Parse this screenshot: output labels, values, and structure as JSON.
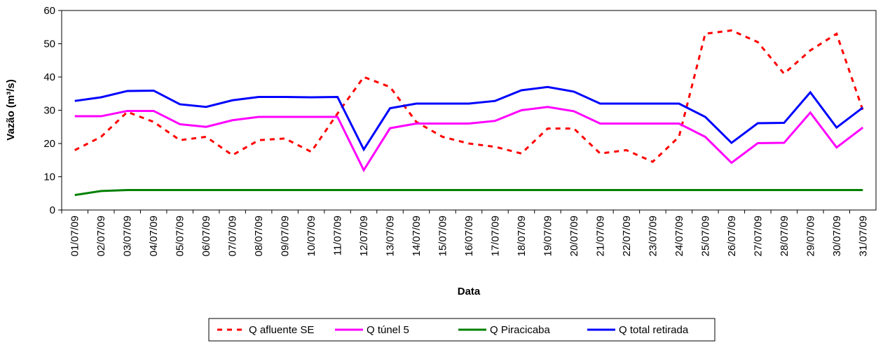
{
  "chart_data": {
    "type": "line",
    "x_label": "Data",
    "y_label": "Vazão (m³/s)",
    "categories": [
      "01/07/09",
      "02/07/09",
      "03/07/09",
      "04/07/09",
      "05/07/09",
      "06/07/09",
      "07/07/09",
      "08/07/09",
      "09/07/09",
      "10/07/09",
      "11/07/09",
      "12/07/09",
      "13/07/09",
      "14/07/09",
      "15/07/09",
      "16/07/09",
      "17/07/09",
      "18/07/09",
      "19/07/09",
      "20/07/09",
      "21/07/09",
      "22/07/09",
      "23/07/09",
      "24/07/09",
      "25/07/09",
      "26/07/09",
      "27/07/09",
      "28/07/09",
      "29/07/09",
      "30/07/09",
      "31/07/09"
    ],
    "series": [
      {
        "name": "Q afluente SE",
        "color": "#ff0000",
        "linestyle": "dashed",
        "values": [
          18,
          22,
          29.5,
          26.5,
          21,
          22,
          16.5,
          21,
          21.5,
          17.5,
          29,
          40,
          37,
          26.5,
          22,
          20,
          19,
          17,
          24.5,
          24.5,
          17,
          18,
          14.5,
          22,
          53,
          54,
          50.5,
          41,
          48,
          53,
          30
        ]
      },
      {
        "name": "Q túnel 5",
        "color": "#ff00ff",
        "linestyle": "solid",
        "values": [
          28.2,
          28.2,
          29.8,
          29.8,
          25.8,
          25,
          27,
          28,
          28,
          28,
          28,
          12,
          24.6,
          26,
          26,
          26,
          26.8,
          30,
          31,
          29.7,
          26,
          26,
          26,
          26,
          22,
          14.2,
          20.1,
          20.2,
          29.3,
          18.8,
          24.8
        ]
      },
      {
        "name": "Q Piracicaba",
        "color": "#008000",
        "linestyle": "solid",
        "values": [
          4.5,
          5.7,
          6,
          6,
          6,
          6,
          6,
          6,
          6,
          6,
          6,
          6,
          6,
          6,
          6,
          6,
          6,
          6,
          6,
          6,
          6,
          6,
          6,
          6,
          6,
          6,
          6,
          6,
          6,
          6,
          6
        ]
      },
      {
        "name": "Q total retirada",
        "color": "#0000ff",
        "linestyle": "solid",
        "values": [
          32.8,
          33.9,
          35.8,
          35.9,
          31.8,
          31,
          33,
          34,
          34,
          33.9,
          34,
          18.2,
          30.6,
          32,
          32,
          32,
          32.8,
          36,
          37,
          35.6,
          32,
          32,
          32,
          32,
          28,
          20.2,
          26.1,
          26.2,
          35.4,
          24.8,
          30.8
        ]
      }
    ],
    "ylim": [
      0,
      60
    ],
    "yticks": [
      0,
      10,
      20,
      30,
      40,
      50,
      60
    ],
    "legend": "bottom"
  }
}
